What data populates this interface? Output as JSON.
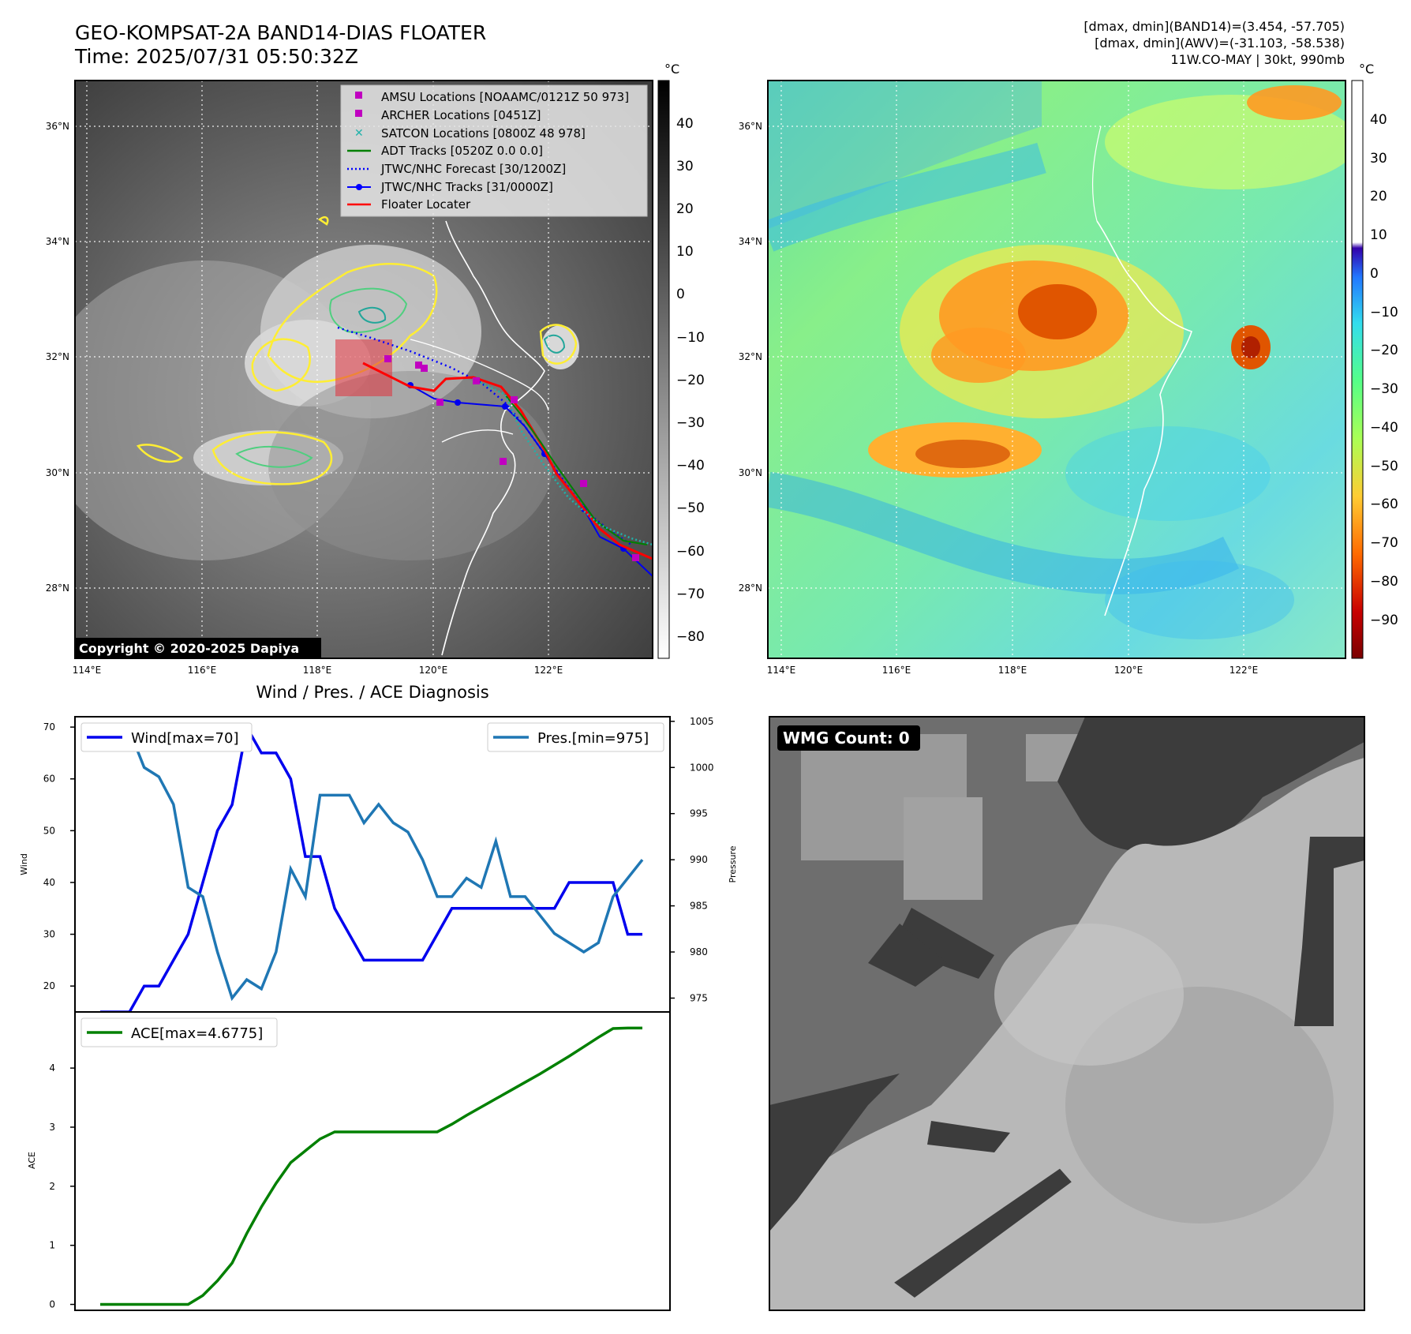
{
  "header": {
    "title_line1": "GEO-KOMPSAT-2A BAND14-DIAS FLOATER",
    "title_line2": "Time: 2025/07/31 05:50:32Z",
    "stats_line1": "[dmax, dmin](BAND14)=(3.454, -57.705)",
    "stats_line2": "[dmax, dmin](AWV)=(-31.103, -58.538)",
    "stats_line3": "11W.CO-MAY | 30kt, 990mb",
    "copyright": "Copyright © 2020-2025 Dapiya"
  },
  "ir_map": {
    "lat_ticks": [
      "36°N",
      "34°N",
      "32°N",
      "30°N",
      "28°N"
    ],
    "lon_ticks": [
      "114°E",
      "116°E",
      "118°E",
      "120°E",
      "122°E"
    ],
    "colorbar_unit": "°C",
    "colorbar_ticks": [
      "40",
      "30",
      "20",
      "10",
      "0",
      "−10",
      "−20",
      "−30",
      "−40",
      "−50",
      "−60",
      "−70",
      "−80"
    ],
    "legend": [
      {
        "label": "AMSU Locations [NOAAMC/0121Z 50 973]",
        "color": "#c000c0",
        "marker": "square"
      },
      {
        "label": "ARCHER Locations [0451Z]",
        "color": "#c000c0",
        "marker": "square"
      },
      {
        "label": "SATCON Locations [0800Z 48 978]",
        "color": "#20b2aa",
        "marker": "x"
      },
      {
        "label": "ADT Tracks [0520Z 0.0 0.0]",
        "color": "#008000",
        "marker": "line"
      },
      {
        "label": "JTWC/NHC Forecast [30/1200Z]",
        "color": "#0000ff",
        "marker": "dotted"
      },
      {
        "label": "JTWC/NHC Tracks [31/0000Z]",
        "color": "#0000ff",
        "marker": "line-dot"
      },
      {
        "label": "Floater Locater",
        "color": "#ff0000",
        "marker": "line"
      }
    ]
  },
  "wv_map": {
    "lat_ticks": [
      "36°N",
      "34°N",
      "32°N",
      "30°N",
      "28°N"
    ],
    "lon_ticks": [
      "114°E",
      "116°E",
      "118°E",
      "120°E",
      "122°E"
    ],
    "colorbar_unit": "°C",
    "colorbar_ticks": [
      "40",
      "30",
      "20",
      "10",
      "0",
      "−10",
      "−20",
      "−30",
      "−40",
      "−50",
      "−60",
      "−70",
      "−80",
      "−90"
    ]
  },
  "wmg_panel": {
    "label": "WMG Count: 0"
  },
  "chart_data": [
    {
      "type": "line",
      "title": "Wind / Pres. / ACE Diagnosis",
      "ylabel": "Wind",
      "ylabel_right": "Pressure",
      "ylim": [
        15,
        72
      ],
      "ylim_right": [
        973.5,
        1005.5
      ],
      "yticks": [
        20,
        30,
        40,
        50,
        60,
        70
      ],
      "yticks_right": [
        975,
        980,
        985,
        990,
        995,
        1000,
        1005
      ],
      "series": [
        {
          "name": "Wind[max=70]",
          "axis": "left",
          "color": "#0000ee",
          "x": [
            0,
            1,
            2,
            3,
            4,
            5,
            6,
            7,
            8,
            9,
            10,
            11,
            12,
            13,
            14,
            15,
            16,
            17,
            18,
            19,
            20,
            21,
            22,
            23,
            24,
            25,
            26,
            27,
            28,
            29,
            30,
            31,
            32,
            33,
            34,
            35,
            36,
            37
          ],
          "values": [
            15,
            15,
            15,
            20,
            20,
            25,
            30,
            40,
            50,
            55,
            70,
            65,
            65,
            60,
            45,
            45,
            35,
            30,
            25,
            25,
            25,
            25,
            25,
            30,
            35,
            35,
            35,
            35,
            35,
            35,
            35,
            35,
            40,
            40,
            40,
            40,
            30,
            30
          ]
        },
        {
          "name": "Pres.[min=975]",
          "axis": "right",
          "color": "#1f77b4",
          "x": [
            0,
            1,
            2,
            3,
            4,
            5,
            6,
            7,
            8,
            9,
            10,
            11,
            12,
            13,
            14,
            15,
            16,
            17,
            18,
            19,
            20,
            21,
            22,
            23,
            24,
            25,
            26,
            27,
            28,
            29,
            30,
            31,
            32,
            33,
            34,
            35,
            36,
            37
          ],
          "values": [
            1004,
            1004,
            1004,
            1000,
            999,
            996,
            987,
            986,
            980,
            975,
            977,
            976,
            980,
            989,
            986,
            997,
            997,
            997,
            994,
            996,
            994,
            993,
            990,
            986,
            986,
            988,
            987,
            992,
            986,
            986,
            984,
            982,
            981,
            980,
            981,
            986,
            988,
            990
          ]
        }
      ]
    },
    {
      "type": "line",
      "ylabel": "ACE",
      "ylim": [
        -0.1,
        4.95
      ],
      "yticks": [
        0,
        1,
        2,
        3,
        4
      ],
      "series": [
        {
          "name": "ACE[max=4.6775]",
          "color": "#008000",
          "x": [
            0,
            1,
            2,
            3,
            4,
            5,
            6,
            7,
            8,
            9,
            10,
            11,
            12,
            13,
            14,
            15,
            16,
            17,
            18,
            19,
            20,
            21,
            22,
            23,
            24,
            25,
            26,
            27,
            28,
            29,
            30,
            31,
            32,
            33,
            34,
            35,
            36,
            37
          ],
          "values": [
            0,
            0,
            0,
            0,
            0,
            0,
            0,
            0.15,
            0.4,
            0.7,
            1.2,
            1.65,
            2.05,
            2.4,
            2.6,
            2.8,
            2.92,
            2.92,
            2.92,
            2.92,
            2.92,
            2.92,
            2.92,
            2.92,
            3.05,
            3.2,
            3.34,
            3.48,
            3.62,
            3.76,
            3.9,
            4.05,
            4.2,
            4.36,
            4.52,
            4.67,
            4.6775,
            4.6775
          ]
        }
      ]
    }
  ]
}
